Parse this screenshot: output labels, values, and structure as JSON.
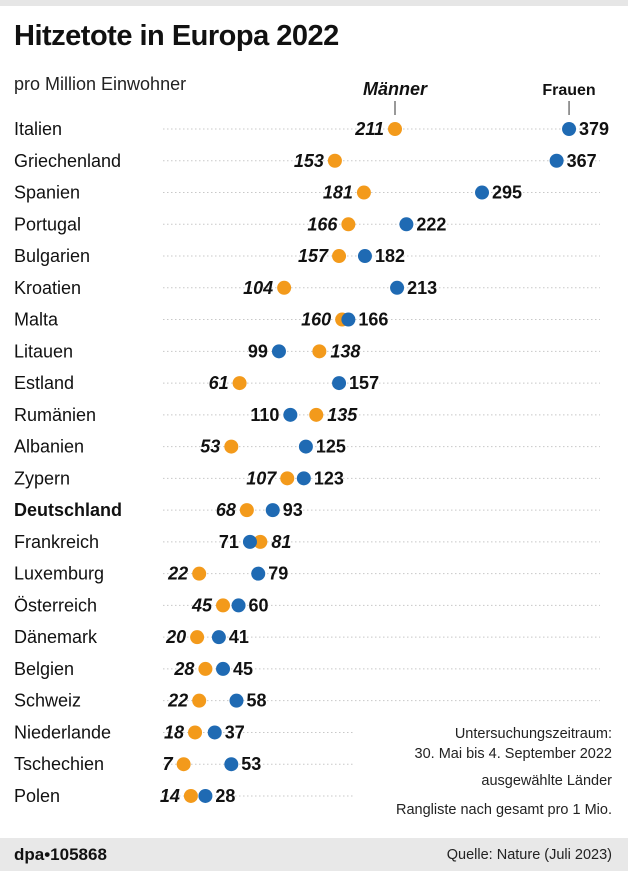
{
  "title": "Hitzetote in Europa 2022",
  "subtitle": "pro Million Einwohner",
  "notes": {
    "period_label": "Untersuchungszeitraum:",
    "period": "30. Mai bis 4. September 2022",
    "selection": "ausgewählte Länder",
    "ranking": "Rangliste nach gesamt pro 1 Mio."
  },
  "footer": {
    "credit": "dpa•105868",
    "source": "Quelle: Nature (Juli 2023)"
  },
  "colors": {
    "maenner": "#f39a1b",
    "frauen": "#1f6ab3"
  },
  "chart_data": {
    "type": "dot",
    "legend_placement": "top",
    "series": [
      {
        "name": "Männer",
        "color": "#f39a1b"
      },
      {
        "name": "Frauen",
        "color": "#1f6ab3"
      }
    ],
    "highlight": "Deutschland",
    "categories": [
      "Italien",
      "Griechenland",
      "Spanien",
      "Portugal",
      "Bulgarien",
      "Kroatien",
      "Malta",
      "Litauen",
      "Estland",
      "Rumänien",
      "Albanien",
      "Zypern",
      "Deutschland",
      "Frankreich",
      "Luxemburg",
      "Österreich",
      "Dänemark",
      "Belgien",
      "Schweiz",
      "Niederlande",
      "Tschechien",
      "Polen"
    ],
    "maenner": [
      211,
      153,
      181,
      166,
      157,
      104,
      160,
      138,
      61,
      135,
      53,
      107,
      68,
      81,
      22,
      45,
      20,
      28,
      22,
      18,
      7,
      14
    ],
    "frauen": [
      379,
      367,
      295,
      222,
      182,
      213,
      166,
      99,
      157,
      110,
      125,
      123,
      93,
      71,
      79,
      60,
      41,
      45,
      58,
      37,
      53,
      28
    ]
  }
}
